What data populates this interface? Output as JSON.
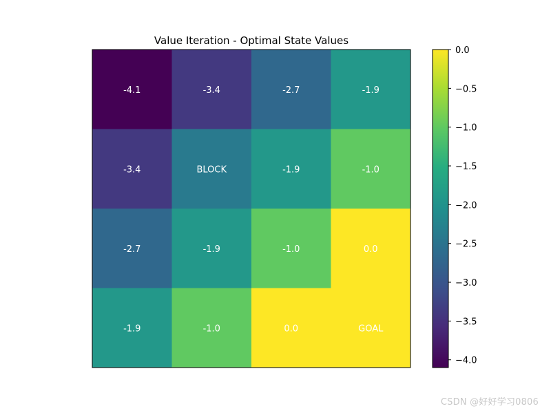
{
  "chart_data": {
    "type": "heatmap",
    "title": "Value Iteration - Optimal State Values",
    "xlabel": "",
    "ylabel": "",
    "rows": 4,
    "cols": 4,
    "values": [
      [
        -4.1,
        -3.4,
        -2.7,
        -1.9
      ],
      [
        -3.4,
        -2.4,
        -1.9,
        -1.0
      ],
      [
        -2.7,
        -1.9,
        -1.0,
        0.0
      ],
      [
        -1.9,
        -1.0,
        0.0,
        0.0
      ]
    ],
    "cell_labels": [
      [
        "-4.1",
        "-3.4",
        "-2.7",
        "-1.9"
      ],
      [
        "-3.4",
        "BLOCK",
        "-1.9",
        "-1.0"
      ],
      [
        "-2.7",
        "-1.9",
        "-1.0",
        "0.0"
      ],
      [
        "-1.9",
        "-1.0",
        "0.0",
        "GOAL"
      ]
    ],
    "colormap": "viridis",
    "colorbar": {
      "vmin": -4.1,
      "vmax": 0.0,
      "ticks": [
        0.0,
        -0.5,
        -1.0,
        -1.5,
        -2.0,
        -2.5,
        -3.0,
        -3.5,
        -4.0
      ],
      "tick_labels": [
        "0.0",
        "−0.5",
        "−1.0",
        "−1.5",
        "−2.0",
        "−2.5",
        "−3.0",
        "−3.5",
        "−4.0"
      ]
    },
    "grid": false
  },
  "watermark": "CSDN @好好学习0806",
  "colors": {
    "text_on_cells": "#ffffff",
    "axis": "#000000"
  }
}
